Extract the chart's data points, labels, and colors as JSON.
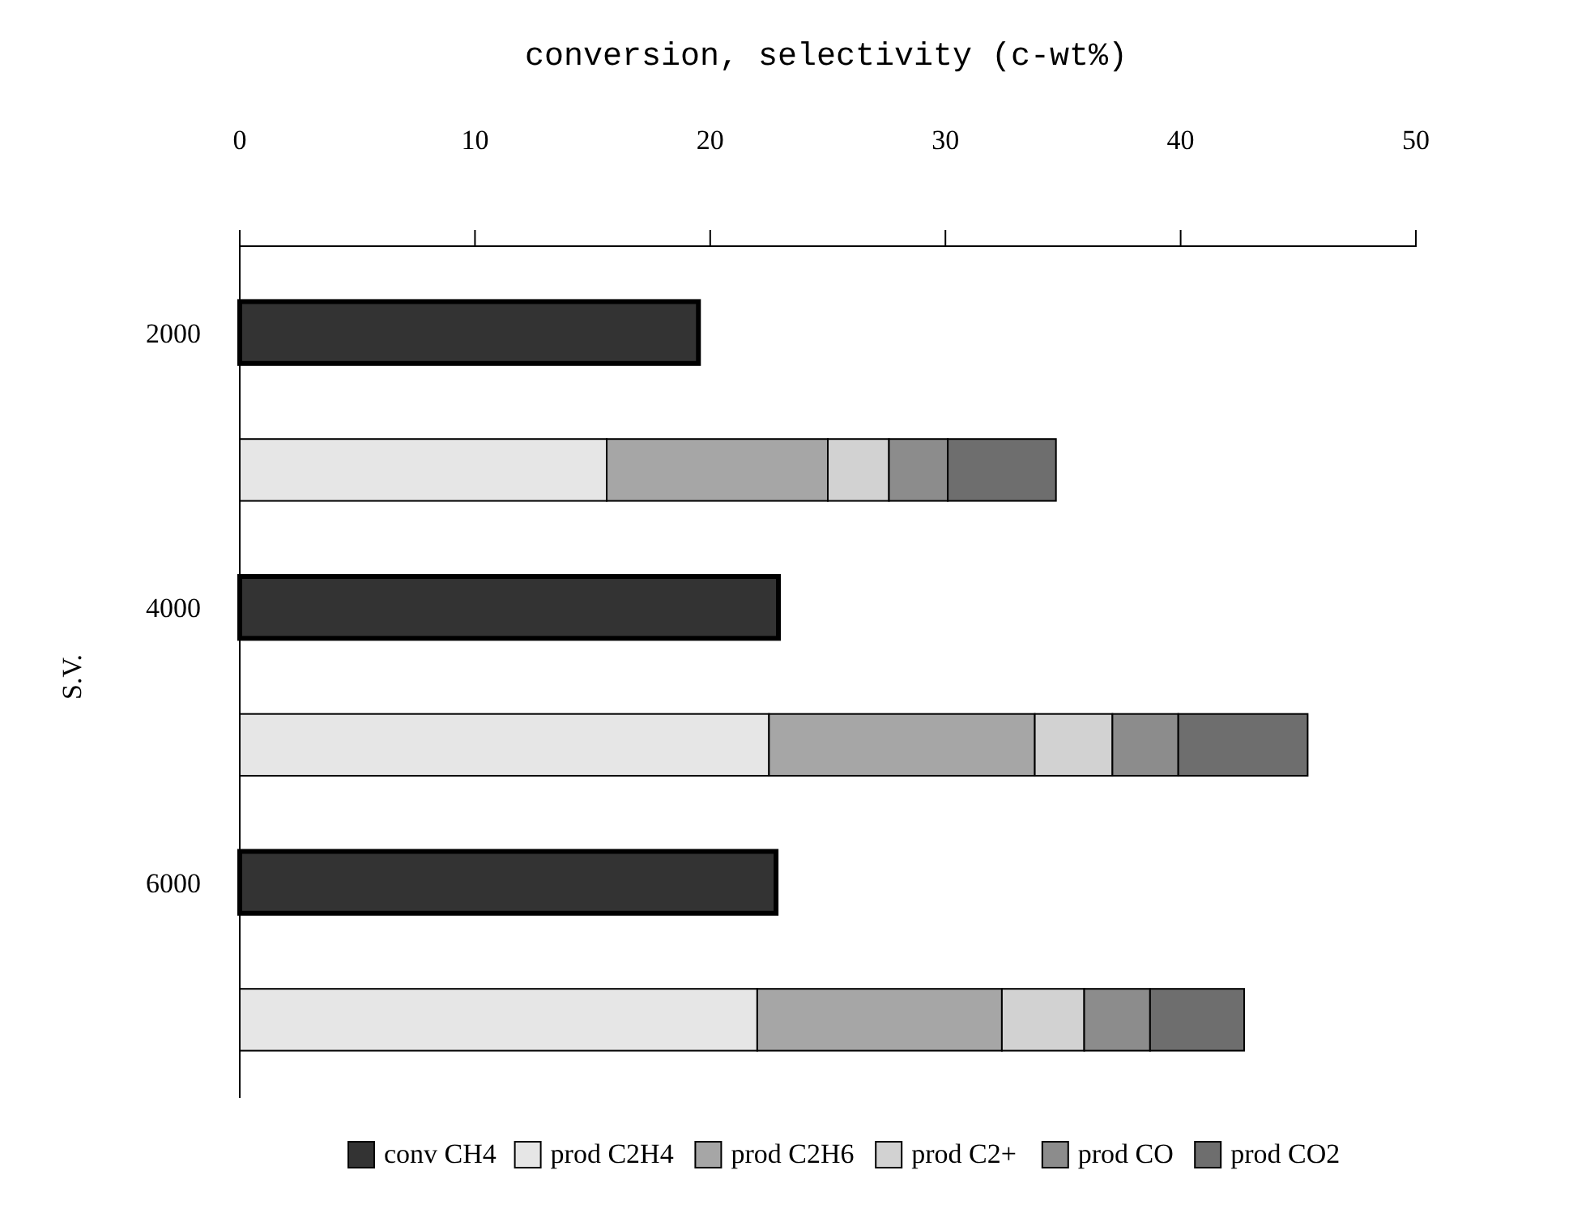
{
  "chart_data": {
    "type": "bar",
    "orientation": "horizontal",
    "stacked": true,
    "xlabel": "conversion, selectivity (c-wt%)",
    "ylabel": "S.V.",
    "categories": [
      "2000",
      null,
      "4000",
      null,
      "6000",
      null
    ],
    "xlim": [
      0,
      50
    ],
    "xticks": [
      0,
      10,
      20,
      30,
      40,
      50
    ],
    "legend": "bottom",
    "grid": false,
    "series": [
      {
        "name": "conv CH4",
        "color": "#333333",
        "values": [
          19.5,
          null,
          22.9,
          null,
          22.8,
          null
        ]
      },
      {
        "name": "prod C2H4",
        "color": "#e6e6e6",
        "values": [
          null,
          15.6,
          null,
          22.5,
          null,
          22.0
        ]
      },
      {
        "name": "prod C2H6",
        "color": "#a6a6a6",
        "values": [
          null,
          9.4,
          null,
          11.3,
          null,
          10.4
        ]
      },
      {
        "name": "prod C2+",
        "color": "#d2d2d2",
        "values": [
          null,
          2.6,
          null,
          3.3,
          null,
          3.5
        ]
      },
      {
        "name": "prod CO",
        "color": "#8c8c8c",
        "values": [
          null,
          2.5,
          null,
          2.8,
          null,
          2.8
        ]
      },
      {
        "name": "prod CO2",
        "color": "#6e6e6e",
        "values": [
          null,
          4.6,
          null,
          5.5,
          null,
          4.0
        ]
      }
    ]
  }
}
